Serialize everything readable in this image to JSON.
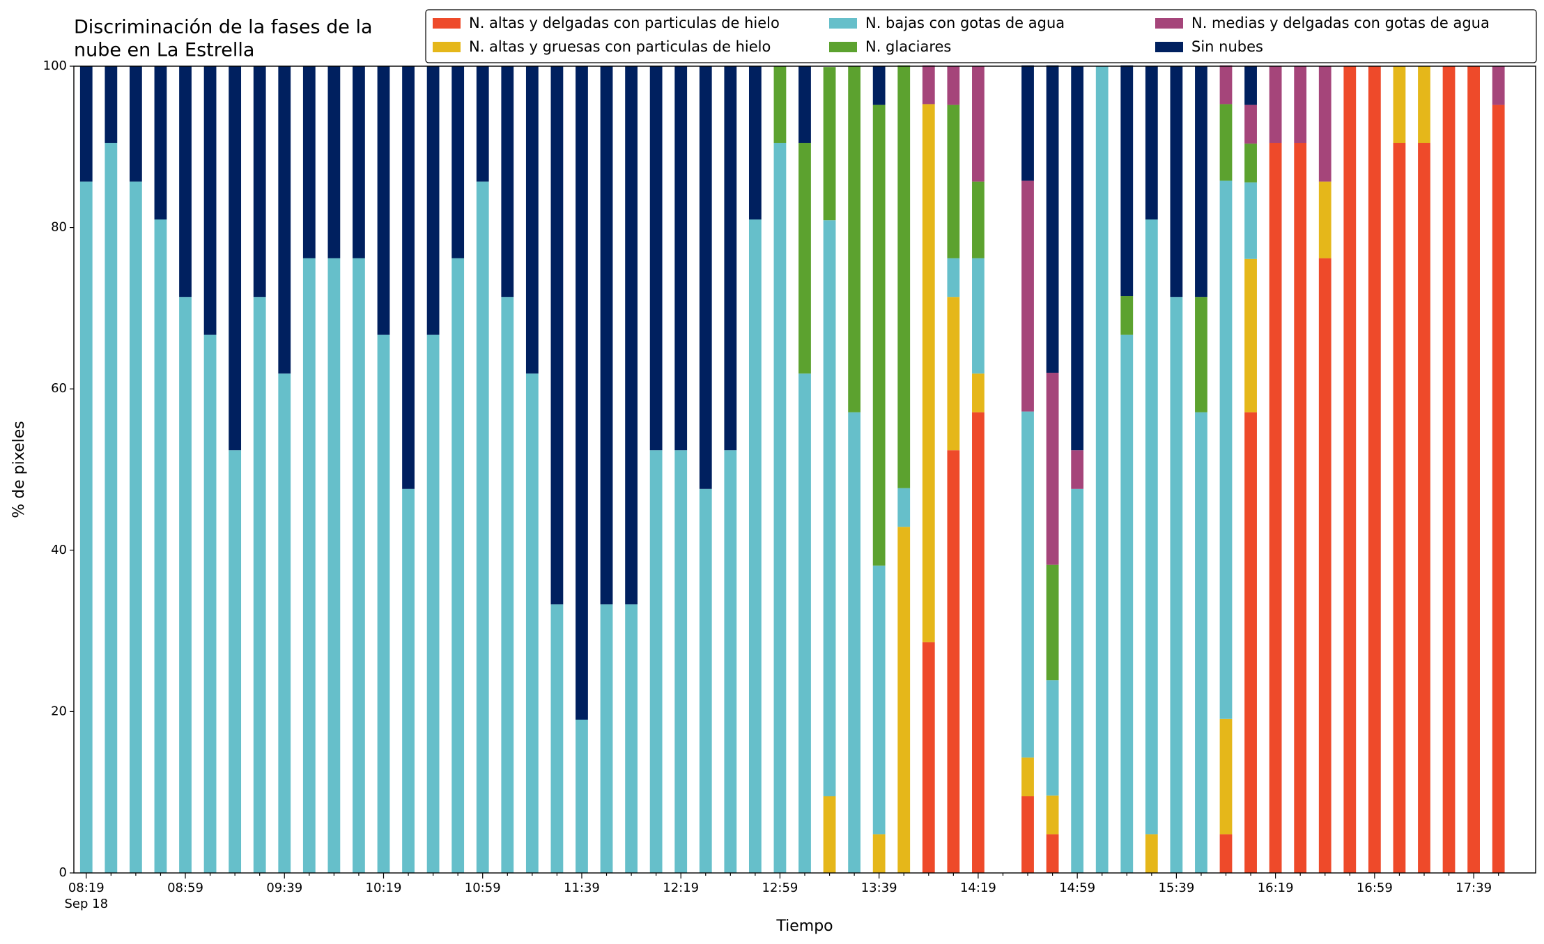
{
  "chart_data": {
    "type": "stacked_bar",
    "title": [
      "Discriminación de la fases de la",
      "nube en La Estrella"
    ],
    "x_label": "Tiempo",
    "y_label": "% de pixeles",
    "x_sublabel": "Sep 18",
    "categories": [
      "08:19",
      null,
      null,
      null,
      "08:59",
      null,
      null,
      null,
      "09:39",
      null,
      null,
      null,
      "10:19",
      null,
      null,
      null,
      "10:59",
      null,
      null,
      null,
      "11:39",
      null,
      null,
      null,
      "12:19",
      null,
      null,
      null,
      "12:59",
      null,
      null,
      null,
      "13:39",
      null,
      null,
      null,
      "14:19",
      null,
      null,
      null,
      "14:59",
      null,
      null,
      null,
      "15:39",
      null,
      null,
      null,
      "16:19",
      null,
      null,
      null,
      "16:59",
      null,
      null,
      null,
      "17:39",
      null
    ],
    "ylim": [
      0,
      100
    ],
    "yticks": [
      0,
      20,
      40,
      60,
      80,
      100
    ],
    "legend": "upper right",
    "series": [
      {
        "name": "N. altas y delgadas con particulas de hielo",
        "color": "#ee4a2a",
        "values": [
          0,
          0,
          0,
          0,
          0,
          0,
          0,
          0,
          0,
          0,
          0,
          0,
          0,
          0,
          0,
          0,
          0,
          0,
          0,
          0,
          0,
          0,
          0,
          0,
          0,
          0,
          0,
          0,
          0,
          0,
          0,
          0,
          0,
          0,
          28.6,
          52.4,
          57.1,
          0,
          9.5,
          4.8,
          0,
          0,
          0,
          0,
          0,
          0,
          4.8,
          57.1,
          90.5,
          90.5,
          76.2,
          100,
          100,
          90.5,
          90.5,
          100,
          100,
          95.2
        ]
      },
      {
        "name": "N. altas y gruesas con particulas de hielo",
        "color": "#e5b71a",
        "values": [
          0,
          0,
          0,
          0,
          0,
          0,
          0,
          0,
          0,
          0,
          0,
          0,
          0,
          0,
          0,
          0,
          0,
          0,
          0,
          0,
          0,
          0,
          0,
          0,
          0,
          0,
          0,
          0,
          0,
          0,
          9.5,
          0,
          4.8,
          42.9,
          66.7,
          19.0,
          4.8,
          0,
          4.8,
          4.8,
          0,
          0,
          0,
          4.8,
          0,
          0,
          14.3,
          19.0,
          0,
          0,
          9.5,
          0,
          0,
          9.5,
          9.5,
          0,
          0,
          0
        ]
      },
      {
        "name": "N. bajas con gotas de agua",
        "color": "#66bfca",
        "values": [
          85.7,
          90.5,
          85.7,
          81.0,
          71.4,
          66.7,
          52.4,
          71.4,
          61.9,
          76.2,
          76.2,
          76.2,
          66.7,
          47.6,
          66.7,
          76.2,
          85.7,
          71.4,
          61.9,
          33.3,
          19.0,
          33.3,
          33.3,
          52.4,
          52.4,
          47.6,
          52.4,
          81.0,
          90.5,
          61.9,
          71.4,
          57.1,
          33.3,
          4.8,
          0,
          4.8,
          14.3,
          0,
          42.9,
          14.3,
          47.6,
          100,
          66.7,
          76.2,
          71.4,
          57.1,
          66.7,
          9.5,
          0,
          0,
          0,
          0,
          0,
          0,
          0,
          0,
          0,
          0
        ]
      },
      {
        "name": "N. glaciares",
        "color": "#5ca22f",
        "values": [
          0,
          0,
          0,
          0,
          0,
          0,
          0,
          0,
          0,
          0,
          0,
          0,
          0,
          0,
          0,
          0,
          0,
          0,
          0,
          0,
          0,
          0,
          0,
          0,
          0,
          0,
          0,
          0,
          9.5,
          28.6,
          19.0,
          42.9,
          57.1,
          52.4,
          0,
          19.0,
          9.5,
          0,
          0,
          14.3,
          0,
          0,
          4.8,
          0,
          0,
          14.3,
          9.5,
          4.8,
          0,
          0,
          0,
          0,
          0,
          0,
          0,
          0,
          0,
          0
        ]
      },
      {
        "name": "N. medias y delgadas con gotas de agua",
        "color": "#a5457a",
        "values": [
          0,
          0,
          0,
          0,
          0,
          0,
          0,
          0,
          0,
          0,
          0,
          0,
          0,
          0,
          0,
          0,
          0,
          0,
          0,
          0,
          0,
          0,
          0,
          0,
          0,
          0,
          0,
          0,
          0,
          0,
          0,
          0,
          0,
          0,
          4.8,
          4.8,
          14.3,
          0,
          28.6,
          23.8,
          4.8,
          0,
          0,
          0,
          0,
          0,
          4.8,
          4.8,
          9.5,
          9.5,
          14.3,
          0,
          0,
          0,
          0,
          0,
          0,
          4.8
        ]
      },
      {
        "name": "Sin nubes",
        "color": "#00205f",
        "values": [
          14.3,
          9.5,
          14.3,
          19.0,
          28.6,
          33.3,
          47.6,
          28.6,
          38.1,
          23.8,
          23.8,
          23.8,
          33.3,
          52.4,
          33.3,
          23.8,
          14.3,
          28.6,
          38.1,
          66.7,
          81.0,
          66.7,
          66.7,
          47.6,
          47.6,
          52.4,
          47.6,
          19.0,
          0,
          9.5,
          0,
          0,
          4.8,
          0,
          0,
          0,
          0,
          0,
          14.3,
          38.1,
          47.6,
          0,
          28.6,
          19.0,
          28.6,
          28.6,
          0,
          4.8,
          0,
          0,
          0,
          0,
          0,
          0,
          0,
          0,
          0,
          0
        ]
      }
    ]
  }
}
